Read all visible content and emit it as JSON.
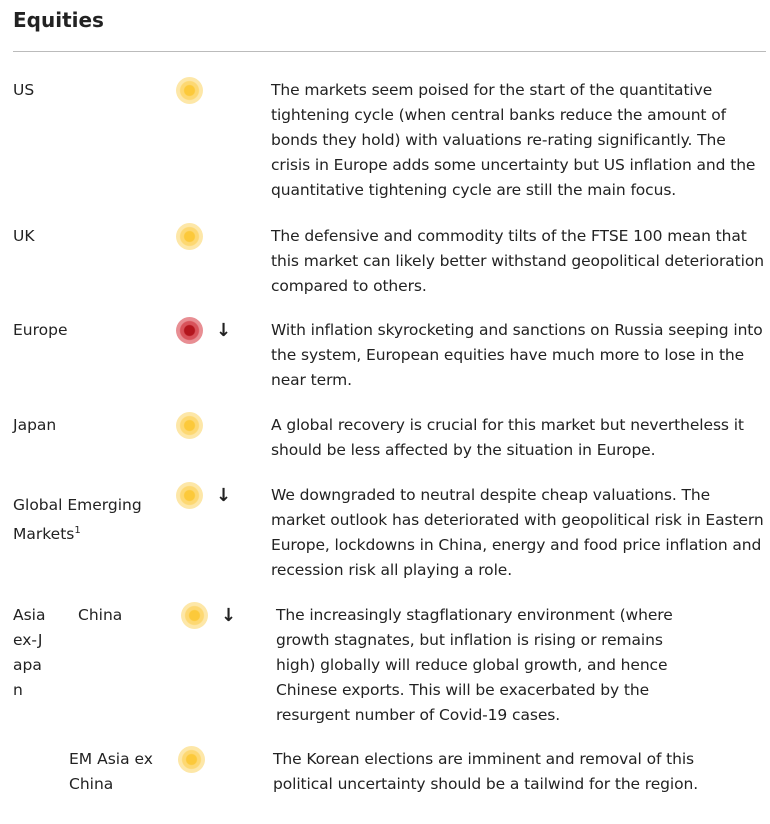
{
  "title": "Equities",
  "rows": [
    {
      "label": "US",
      "signal": "neutral",
      "arrow": "",
      "text": "The markets seem poised for the start of the quantitative tightening cycle (when central banks reduce the amount of bonds they hold) with valuations re-rating significantly. The crisis in Europe adds some uncertainty but US inflation and the quantitative tightening cycle are still the main focus."
    },
    {
      "label": "UK",
      "signal": "neutral",
      "arrow": "",
      "text": "The defensive and commodity tilts of the FTSE 100 mean that this market can likely better withstand geopolitical deterioration compared to others."
    },
    {
      "label": "Europe",
      "signal": "negative",
      "arrow": "↓",
      "text": "With inflation skyrocketing and sanctions on Russia seeping into the system, European equities have much more to lose in the near term."
    },
    {
      "label": "Japan",
      "signal": "neutral",
      "arrow": "",
      "text": "A global recovery is crucial for this market but nevertheless it should be less affected by the situation in Europe."
    },
    {
      "label": "Global Emerging Markets",
      "sup": "1",
      "signal": "neutral",
      "arrow": "↓",
      "text": "We downgraded to neutral despite cheap valuations. The market outlook has deteriorated with geopolitical risk in Eastern Europe, lockdowns in China, energy and food price inflation and recession risk all playing a role."
    }
  ],
  "asia": {
    "group_label": "Asia ex-Japan",
    "rows": [
      {
        "label": "China",
        "signal": "neutral",
        "arrow": "↓",
        "text": "The increasingly stagflationary environment (where growth stagnates, but inflation is rising or remains high) globally will reduce global growth, and hence Chinese exports. This will be exacerbated by the resurgent number of Covid-19 cases."
      },
      {
        "label": "EM Asia ex China",
        "signal": "neutral",
        "arrow": "",
        "text": "The Korean elections are imminent and removal of this political uncertainty should be a tailwind for the region."
      }
    ]
  },
  "colors": {
    "neutral": "#fcc93a",
    "negative": "#b3151d"
  }
}
